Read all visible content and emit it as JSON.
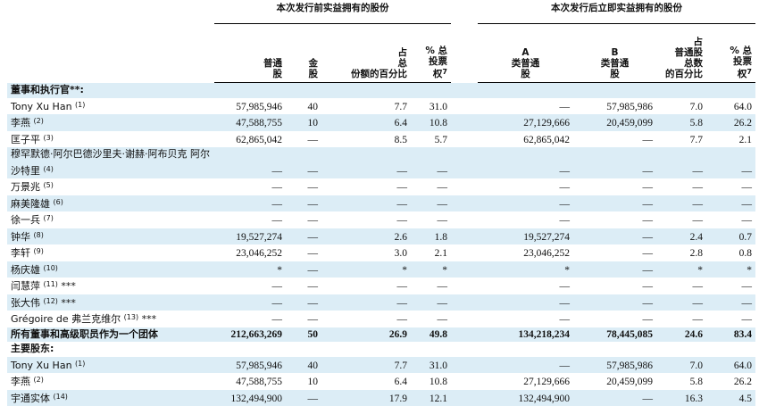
{
  "groups": [
    "本次发行前实益拥有的股份",
    "本次发行后立即实益拥有的股份"
  ],
  "columns": [
    {
      "lines": [
        "普通",
        "股"
      ]
    },
    {
      "lines": [
        "金",
        "股"
      ]
    },
    {
      "lines": [
        "占",
        "总",
        "份额的百分比"
      ]
    },
    {
      "lines": [
        "% 总",
        "投票",
        "权"
      ],
      "note": "7"
    },
    {
      "lines": [
        "A",
        "类普通",
        "股"
      ]
    },
    {
      "lines": [
        "B",
        "类普通",
        "股"
      ]
    },
    {
      "lines": [
        "占",
        "普通股",
        "总数",
        "的百分比"
      ]
    },
    {
      "lines": [
        "% 总",
        "投票",
        "权"
      ],
      "note": "7"
    }
  ],
  "rows": [
    {
      "label": "董事和执行官**:"
    },
    {
      "label": "Tony Xu Han",
      "note": "(1)",
      "cells": [
        "57,985,946",
        "40",
        "7.7",
        "31.0",
        "—",
        "57,985,986",
        "7.0",
        "64.0"
      ]
    },
    {
      "label": "李燕",
      "note": "(2)",
      "cells": [
        "47,588,755",
        "10",
        "6.4",
        "10.8",
        "27,129,666",
        "20,459,099",
        "5.8",
        "26.2"
      ]
    },
    {
      "label": "匡子平",
      "note": "(3)",
      "cells": [
        "62,865,042",
        "—",
        "8.5",
        "5.7",
        "62,865,042",
        "—",
        "7.7",
        "2.1"
      ]
    },
    {
      "label": "穆罕默德·阿尔巴德沙里夫·谢赫·阿布贝克 阿尔沙特里",
      "note": "(4)",
      "cells": [
        "—",
        "—",
        "—",
        "—",
        "—",
        "—",
        "—",
        "—"
      ]
    },
    {
      "label": "万景兆",
      "note": "(5)",
      "cells": [
        "—",
        "—",
        "—",
        "—",
        "—",
        "—",
        "—",
        "—"
      ]
    },
    {
      "label": "麻美隆雄",
      "note": "(6)",
      "cells": [
        "—",
        "—",
        "—",
        "—",
        "—",
        "—",
        "—",
        "—"
      ]
    },
    {
      "label": "徐一兵",
      "note": "(7)",
      "cells": [
        "—",
        "—",
        "—",
        "—",
        "—",
        "—",
        "—",
        "—"
      ]
    },
    {
      "label": "钟华",
      "note": "(8)",
      "cells": [
        "19,527,274",
        "—",
        "2.6",
        "1.8",
        "19,527,274",
        "—",
        "2.4",
        "0.7"
      ]
    },
    {
      "label": "李轩",
      "note": "(9)",
      "cells": [
        "23,046,252",
        "—",
        "3.0",
        "2.1",
        "23,046,252",
        "—",
        "2.8",
        "0.8"
      ]
    },
    {
      "label": "杨庆雄",
      "note": "(10)",
      "cells": [
        "*",
        "—",
        "*",
        "*",
        "*",
        "—",
        "*",
        "*"
      ]
    },
    {
      "label": "闫慧萍",
      "note": "(11)",
      "suffix": "***",
      "cells": [
        "—",
        "—",
        "—",
        "—",
        "—",
        "—",
        "—",
        "—"
      ]
    },
    {
      "label": "张大伟",
      "note": "(12)",
      "suffix": "***",
      "cells": [
        "—",
        "—",
        "—",
        "—",
        "—",
        "—",
        "—",
        "—"
      ]
    },
    {
      "label": "Grégoire de 弗兰克维尔",
      "note": "(13)",
      "suffix": "***",
      "cells": [
        "—",
        "—",
        "—",
        "—",
        "—",
        "—",
        "—",
        "—"
      ]
    },
    {
      "label": "所有董事和高级职员作为一个团体",
      "bold": true,
      "cells": [
        "212,663,269",
        "50",
        "26.9",
        "49.8",
        "134,218,234",
        "78,445,085",
        "24.6",
        "83.4"
      ]
    },
    {
      "label": "主要股东:"
    },
    {
      "label": "Tony Xu Han",
      "note": "(1)",
      "cells": [
        "57,985,946",
        "40",
        "7.7",
        "31.0",
        "—",
        "57,985,986",
        "7.0",
        "64.0"
      ]
    },
    {
      "label": "李燕",
      "note": "(2)",
      "cells": [
        "47,588,755",
        "10",
        "6.4",
        "10.8",
        "27,129,666",
        "20,459,099",
        "5.8",
        "26.2"
      ]
    },
    {
      "label": "宇通实体",
      "note": "(14)",
      "cells": [
        "132,494,900",
        "—",
        "17.9",
        "12.1",
        "132,494,900",
        "—",
        "16.3",
        "4.5"
      ]
    }
  ]
}
